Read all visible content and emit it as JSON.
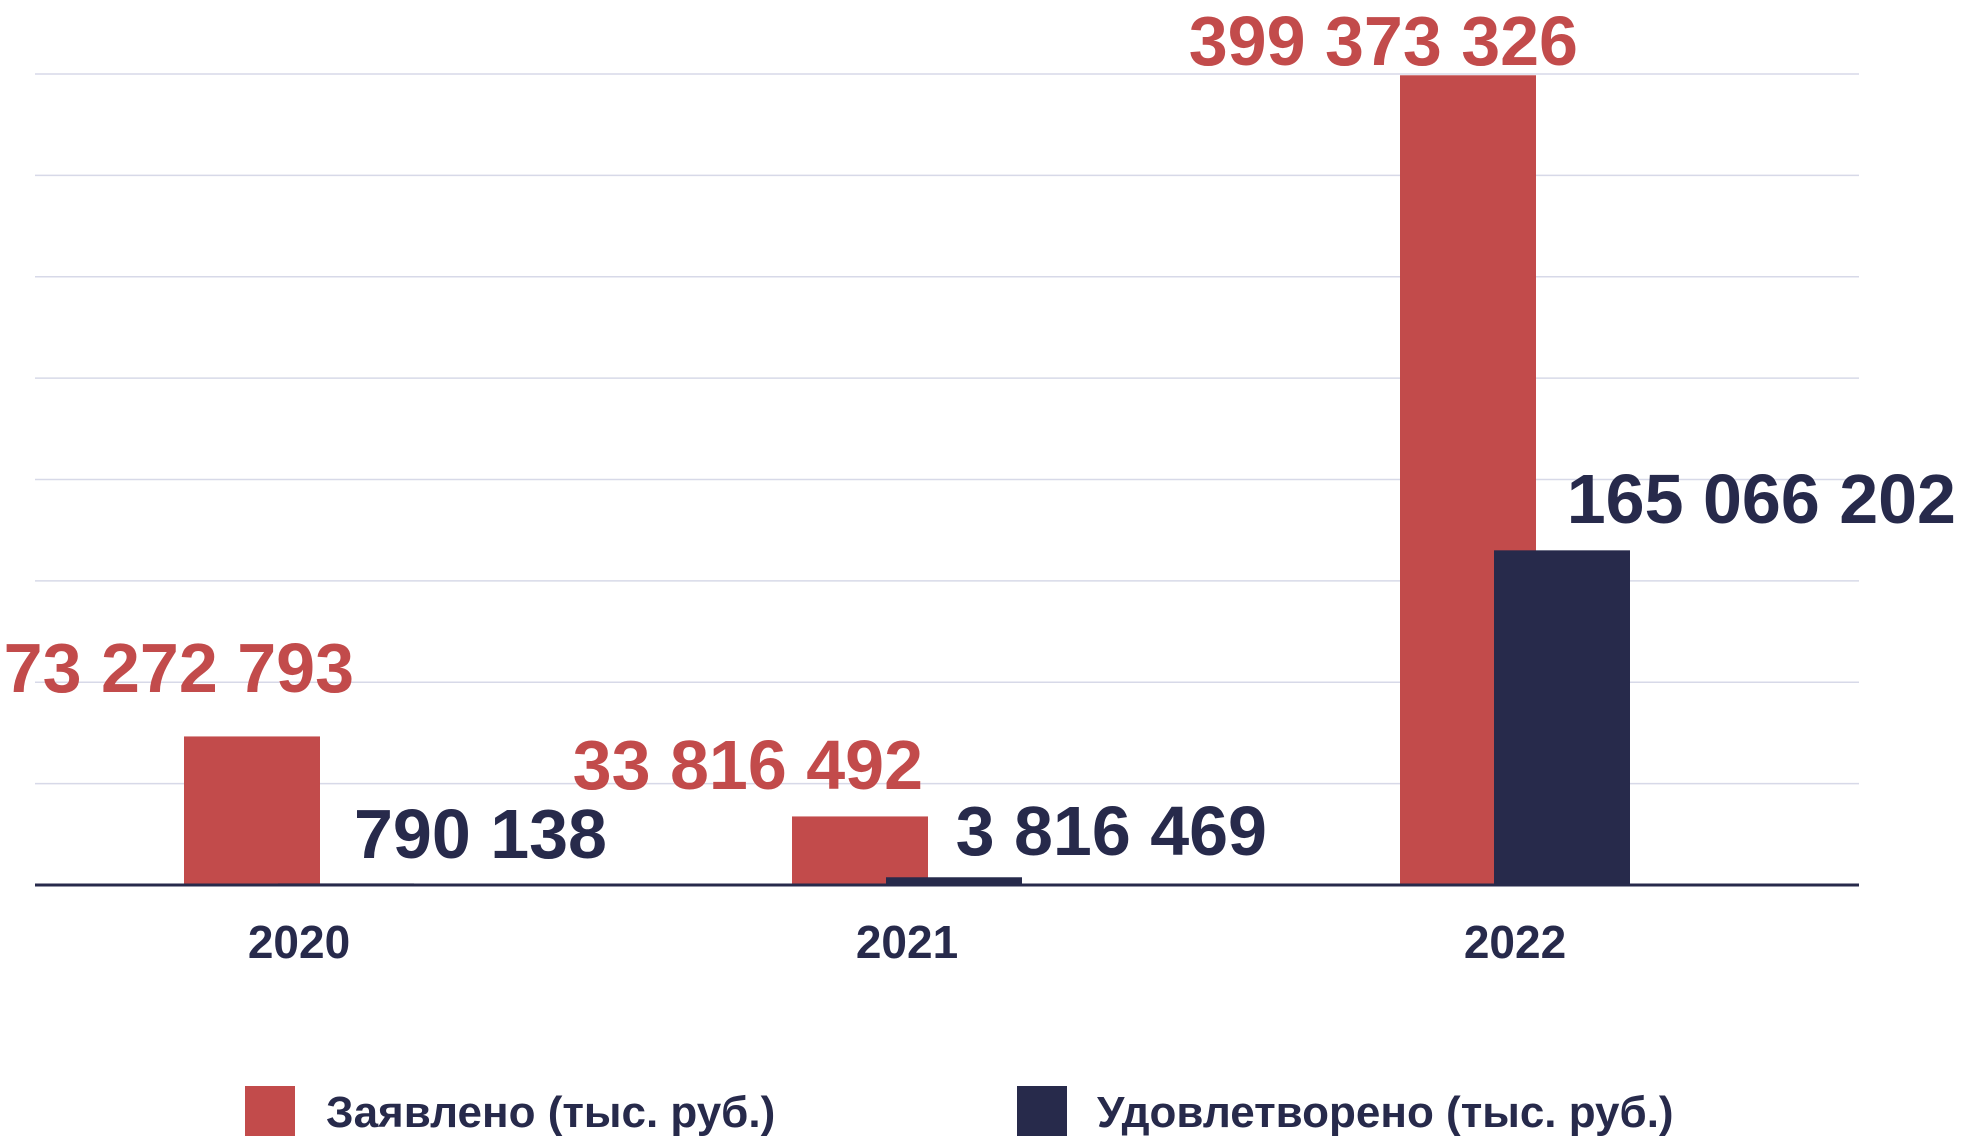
{
  "chart_data": {
    "type": "bar",
    "categories": [
      "2020",
      "2021",
      "2022"
    ],
    "series": [
      {
        "name": "Заявлено (тыс. руб.)",
        "color": "#C24B4B",
        "values": [
          73272793,
          33816492,
          399373326
        ],
        "data_labels": [
          "73 272 793",
          "33 816 492",
          "399 373 326"
        ]
      },
      {
        "name": "Удовлетворено (тыс. руб.)",
        "color": "#272A4B",
        "values": [
          790138,
          3816469,
          165066202
        ],
        "data_labels": [
          "790 138",
          "3 816 469",
          "165 066 202"
        ]
      }
    ],
    "ylim": [
      0,
      400000000
    ],
    "grid": true,
    "legend": "bottom"
  },
  "colors": {
    "gridline": "#D7D9E8",
    "axis": "#272A4B",
    "text_dark": "#272A4B"
  }
}
